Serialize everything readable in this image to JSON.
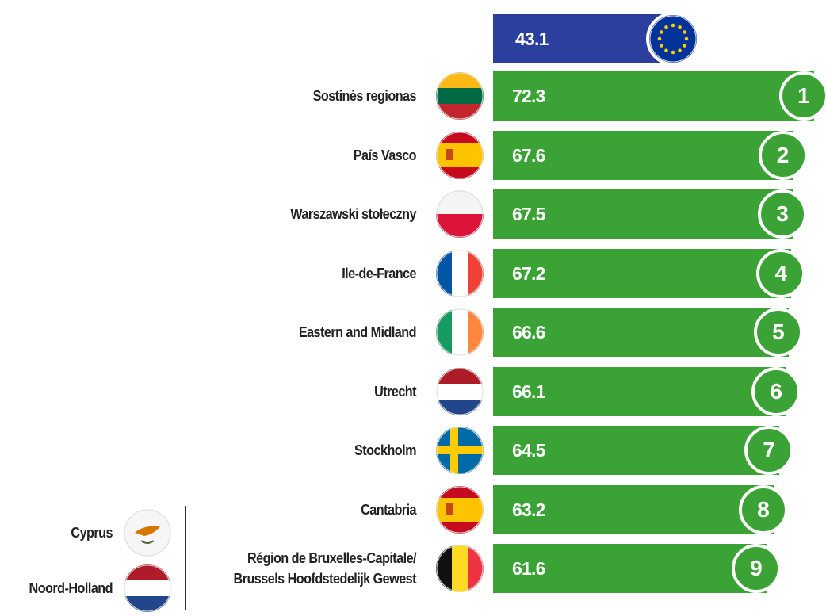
{
  "chart_data": {
    "type": "bar",
    "orientation": "horizontal",
    "reference": {
      "value": 43.1,
      "color": "#2b3f9e"
    },
    "categories": [
      "Sostinės regionas",
      "País Vasco",
      "Warszawski stołeczny",
      "Ile-de-France",
      "Eastern and Midland",
      "Utrecht",
      "Stockholm",
      "Cantabria",
      "Région de Bruxelles-Capitale/\nBrussels Hoofdstedelijk Gewest"
    ],
    "values": [
      72.3,
      67.6,
      67.5,
      67.2,
      66.6,
      66.1,
      64.5,
      63.2,
      61.6
    ],
    "ranks": [
      1,
      2,
      3,
      4,
      5,
      6,
      7,
      8,
      9
    ],
    "color": "#3ba336",
    "other_regions": [
      "Cyprus",
      "Noord-Holland"
    ]
  }
}
